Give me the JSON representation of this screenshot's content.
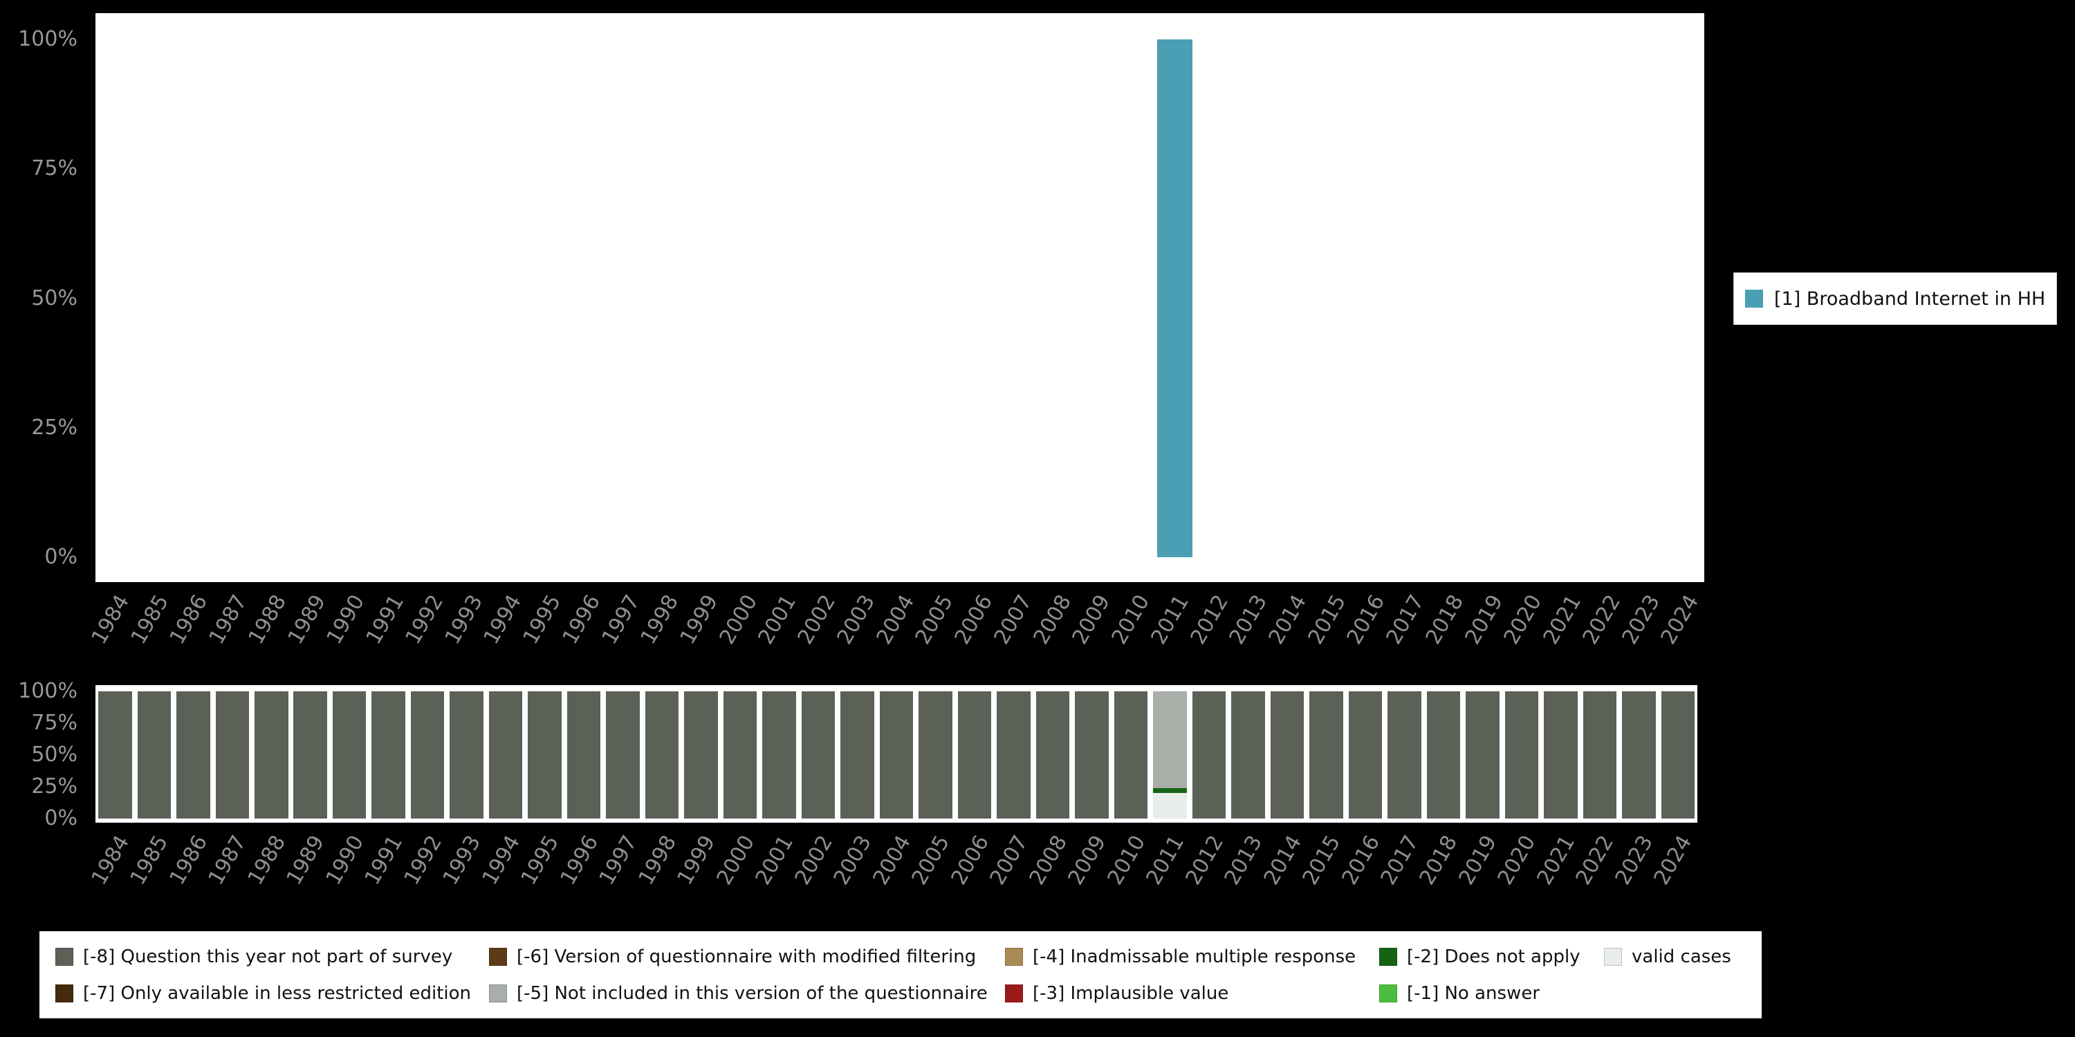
{
  "page": {
    "background": "#000000"
  },
  "chart_data": [
    {
      "type": "bar",
      "title": "",
      "xlabel": "",
      "ylabel": "",
      "ylim": [
        0,
        100
      ],
      "grid": false,
      "legend_position": "right",
      "categories": [
        "1984",
        "1985",
        "1986",
        "1987",
        "1988",
        "1989",
        "1990",
        "1991",
        "1992",
        "1993",
        "1994",
        "1995",
        "1996",
        "1997",
        "1998",
        "1999",
        "2000",
        "2001",
        "2002",
        "2003",
        "2004",
        "2005",
        "2006",
        "2007",
        "2008",
        "2009",
        "2010",
        "2011",
        "2012",
        "2013",
        "2014",
        "2015",
        "2016",
        "2017",
        "2018",
        "2019",
        "2020",
        "2021",
        "2022",
        "2023",
        "2024"
      ],
      "yticks": [
        {
          "value": 100,
          "label": "100%"
        },
        {
          "value": 75,
          "label": "75%"
        },
        {
          "value": 50,
          "label": "50%"
        },
        {
          "value": 25,
          "label": "25%"
        },
        {
          "value": 0,
          "label": "0%"
        }
      ],
      "series": [
        {
          "name": "[1] Broadband Internet in HH",
          "color": "#4A9FB5",
          "values": [
            0,
            0,
            0,
            0,
            0,
            0,
            0,
            0,
            0,
            0,
            0,
            0,
            0,
            0,
            0,
            0,
            0,
            0,
            0,
            0,
            0,
            0,
            0,
            0,
            0,
            0,
            0,
            100,
            0,
            0,
            0,
            0,
            0,
            0,
            0,
            0,
            0,
            0,
            0,
            0,
            0
          ]
        }
      ]
    },
    {
      "type": "stacked-bar",
      "title": "",
      "xlabel": "",
      "ylabel": "",
      "ylim": [
        0,
        100
      ],
      "grid": false,
      "legend_position": "bottom",
      "categories": [
        "1984",
        "1985",
        "1986",
        "1987",
        "1988",
        "1989",
        "1990",
        "1991",
        "1992",
        "1993",
        "1994",
        "1995",
        "1996",
        "1997",
        "1998",
        "1999",
        "2000",
        "2001",
        "2002",
        "2003",
        "2004",
        "2005",
        "2006",
        "2007",
        "2008",
        "2009",
        "2010",
        "2011",
        "2012",
        "2013",
        "2014",
        "2015",
        "2016",
        "2017",
        "2018",
        "2019",
        "2020",
        "2021",
        "2022",
        "2023",
        "2024"
      ],
      "yticks": [
        {
          "value": 100,
          "label": "100%"
        },
        {
          "value": 75,
          "label": "75%"
        },
        {
          "value": 50,
          "label": "50%"
        },
        {
          "value": 25,
          "label": "25%"
        },
        {
          "value": 0,
          "label": "0%"
        }
      ],
      "series": [
        {
          "name": "valid cases",
          "color": "#E9EDE9",
          "values": [
            0,
            0,
            0,
            0,
            0,
            0,
            0,
            0,
            0,
            0,
            0,
            0,
            0,
            0,
            0,
            0,
            0,
            0,
            0,
            0,
            0,
            0,
            0,
            0,
            0,
            0,
            0,
            20,
            0,
            0,
            0,
            0,
            0,
            0,
            0,
            0,
            0,
            0,
            0,
            0,
            0
          ]
        },
        {
          "name": "[-2] Does not apply",
          "color": "#156315",
          "values": [
            0,
            0,
            0,
            0,
            0,
            0,
            0,
            0,
            0,
            0,
            0,
            0,
            0,
            0,
            0,
            0,
            0,
            0,
            0,
            0,
            0,
            0,
            0,
            0,
            0,
            0,
            0,
            4,
            0,
            0,
            0,
            0,
            0,
            0,
            0,
            0,
            0,
            0,
            0,
            0,
            0
          ]
        },
        {
          "name": "[-5] Not included in this version of the questionnaire",
          "color": "#A9AEA9",
          "values": [
            0,
            0,
            0,
            0,
            0,
            0,
            0,
            0,
            0,
            0,
            0,
            0,
            0,
            0,
            0,
            0,
            0,
            0,
            0,
            0,
            0,
            0,
            0,
            0,
            0,
            0,
            0,
            76,
            0,
            0,
            0,
            0,
            0,
            0,
            0,
            0,
            0,
            0,
            0,
            0,
            0
          ]
        },
        {
          "name": "[-8] Question this year not part of survey",
          "color": "#5B6157",
          "values": [
            100,
            100,
            100,
            100,
            100,
            100,
            100,
            100,
            100,
            100,
            100,
            100,
            100,
            100,
            100,
            100,
            100,
            100,
            100,
            100,
            100,
            100,
            100,
            100,
            100,
            100,
            100,
            0,
            100,
            100,
            100,
            100,
            100,
            100,
            100,
            100,
            100,
            100,
            100,
            100,
            100
          ]
        }
      ],
      "legend": [
        {
          "label": "[-8] Question this year not part of survey",
          "color": "#5B6157"
        },
        {
          "label": "[-6] Version of questionnaire with modified filtering",
          "color": "#5E3A17"
        },
        {
          "label": "[-4] Inadmissable multiple response",
          "color": "#A98B55"
        },
        {
          "label": "[-2] Does not apply",
          "color": "#156315"
        },
        {
          "label": "valid cases",
          "color": "#E9EDE9"
        },
        {
          "label": "[-7] Only available in less restricted edition",
          "color": "#452A0D"
        },
        {
          "label": "[-5] Not included in this version of the questionnaire",
          "color": "#A9AEA9"
        },
        {
          "label": "[-3] Implausible value",
          "color": "#9B1B1B"
        },
        {
          "label": "[-1] No answer",
          "color": "#4CBE3F"
        }
      ]
    }
  ]
}
